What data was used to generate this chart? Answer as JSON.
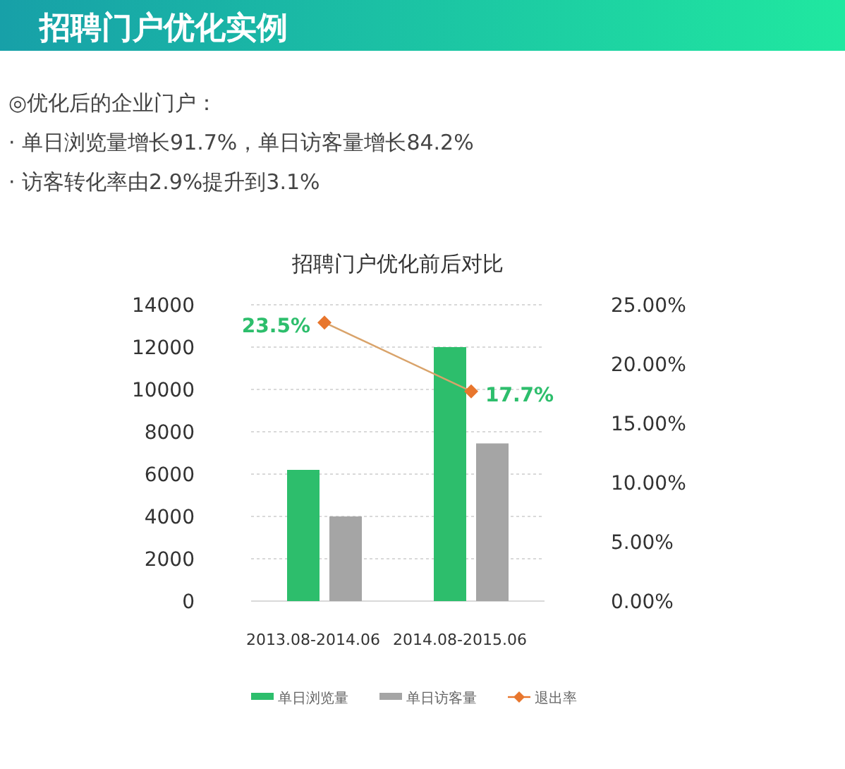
{
  "chart_data": {
    "type": "bar",
    "title": "招聘门户优化实例",
    "subtitle": "招聘门户优化前后对比",
    "annotations": [
      "◎优化后的企业门户：",
      "· 单日浏览量增长91.7%，单日访客量增长84.2%",
      "· 访客转化率由2.9%提升到3.1%"
    ],
    "categories": [
      "2013.08-2014.06",
      "2014.08-2015.06"
    ],
    "series": [
      {
        "name": "单日浏览量",
        "color": "#2dbe6c",
        "values": [
          6200,
          12000
        ]
      },
      {
        "name": "单日访客量",
        "color": "#a5a5a5",
        "values": [
          4000,
          7450
        ]
      },
      {
        "name": "退出率",
        "type": "line",
        "axis": "y2",
        "color": "#e8762d",
        "marker": "diamond",
        "values": [
          23.5,
          17.7
        ],
        "value_labels": [
          "23.5%",
          "17.7%"
        ]
      }
    ],
    "ylim": [
      0,
      14000
    ],
    "yticks": [
      0,
      2000,
      4000,
      6000,
      8000,
      10000,
      12000,
      14000
    ],
    "y2lim": [
      0,
      25
    ],
    "y2ticks": [
      {
        "value": 0,
        "label": "0.00%"
      },
      {
        "value": 5,
        "label": "5.00%"
      },
      {
        "value": 10,
        "label": "10.00%"
      },
      {
        "value": 15,
        "label": "15.00%"
      },
      {
        "value": 20,
        "label": "20.00%"
      },
      {
        "value": 25,
        "label": "25.00%"
      }
    ],
    "grid": "y",
    "legend": "bottom"
  }
}
